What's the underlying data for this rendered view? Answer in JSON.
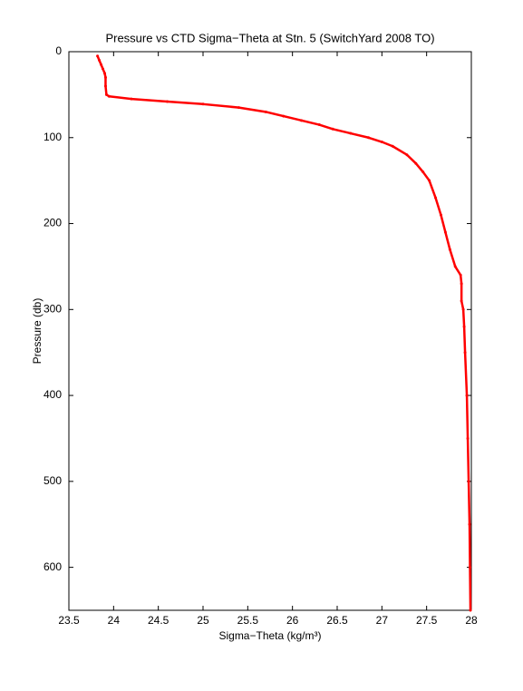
{
  "chart_data": {
    "type": "line",
    "title": "Pressure vs CTD Sigma−Theta at Stn. 5 (SwitchYard 2008 TO)",
    "x_label": "Sigma−Theta (kg/m³)",
    "y_label": "Pressure (db)",
    "x": [
      23.82,
      23.84,
      23.86,
      23.88,
      23.9,
      23.91,
      23.91,
      23.92,
      23.95,
      24.2,
      24.6,
      25.0,
      25.4,
      25.7,
      25.9,
      26.1,
      26.3,
      26.45,
      26.65,
      26.85,
      27.0,
      27.12,
      27.28,
      27.38,
      27.46,
      27.53,
      27.6,
      27.66,
      27.71,
      27.76,
      27.82,
      27.88,
      27.89,
      27.89,
      27.91,
      27.92,
      27.93,
      27.95,
      27.96,
      27.97,
      27.98,
      27.985,
      27.99
    ],
    "series": [
      {
        "color": "#ff0000",
        "values": [
          5,
          10,
          15,
          20,
          25,
          30,
          40,
          50,
          52,
          55,
          58,
          61,
          65,
          70,
          75,
          80,
          85,
          90,
          95,
          100,
          105,
          110,
          120,
          130,
          140,
          150,
          170,
          190,
          210,
          230,
          250,
          260,
          270,
          290,
          300,
          320,
          350,
          400,
          450,
          500,
          550,
          600,
          650
        ]
      }
    ],
    "xlim": [
      23.5,
      28
    ],
    "xticks": [
      23.5,
      24,
      24.5,
      25,
      25.5,
      26,
      26.5,
      27,
      27.5,
      28
    ],
    "ylim": [
      0,
      650
    ],
    "yticks": [
      0,
      100,
      200,
      300,
      400,
      500,
      600
    ],
    "y_reversed": true
  }
}
